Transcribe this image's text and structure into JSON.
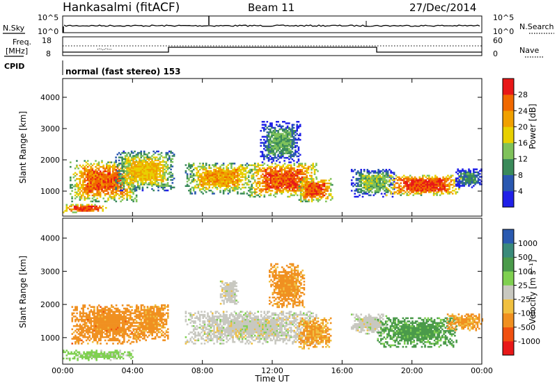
{
  "header": {
    "station": "Hankasalmi (fitACF)",
    "beam": "Beam 11",
    "date": "27/Dec/2014"
  },
  "noise_panel": {
    "left_label": "N.Sky",
    "right_label": "N.Search",
    "left_ticks": [
      "10^5",
      "10^0"
    ],
    "right_ticks": [
      "10^5",
      "10^0"
    ]
  },
  "freq_panel": {
    "left_label_1": "Freq.",
    "left_label_2": "[MHz]",
    "right_label": "Nave",
    "left_ticks": [
      "18",
      "8"
    ],
    "right_ticks": [
      "60",
      "0"
    ]
  },
  "cpid": {
    "label": "CPID",
    "text": "normal (fast stereo) 153"
  },
  "x_axis": {
    "label": "Time UT",
    "ticks": [
      "00:00",
      "04:00",
      "08:00",
      "12:00",
      "16:00",
      "20:00",
      "00:00"
    ]
  },
  "chart_data": [
    {
      "type": "heatmap",
      "title": "",
      "xlabel": "Time UT",
      "ylabel": "Slant Range [km]",
      "xlim": [
        0,
        24
      ],
      "ylim": [
        200,
        4600
      ],
      "yticks": [
        "1000",
        "2000",
        "3000",
        "4000"
      ],
      "colorbar": {
        "label": "Power [dB]",
        "ticks": [
          "4",
          "8",
          "12",
          "16",
          "20",
          "24",
          "28"
        ],
        "colors": [
          "#2020e8",
          "#2a58b0",
          "#3a8a5a",
          "#7fc25a",
          "#e8d000",
          "#f0a000",
          "#f06800",
          "#e81818"
        ]
      },
      "regions": [
        {
          "t": [
            0.4,
            4.2
          ],
          "r": [
            650,
            1950
          ],
          "value": 26
        },
        {
          "t": [
            0.0,
            2.5
          ],
          "r": [
            300,
            560
          ],
          "value": 28
        },
        {
          "t": [
            3.0,
            6.4
          ],
          "r": [
            1000,
            2250
          ],
          "value": 20
        },
        {
          "t": [
            7.0,
            11.0
          ],
          "r": [
            900,
            1900
          ],
          "value": 22
        },
        {
          "t": [
            10.6,
            14.6
          ],
          "r": [
            800,
            1900
          ],
          "value": 27
        },
        {
          "t": [
            11.3,
            13.6
          ],
          "r": [
            1900,
            3200
          ],
          "value": 12
        },
        {
          "t": [
            13.5,
            15.4
          ],
          "r": [
            650,
            1400
          ],
          "value": 27
        },
        {
          "t": [
            16.5,
            19.0
          ],
          "r": [
            800,
            1700
          ],
          "value": 14
        },
        {
          "t": [
            18.5,
            22.8
          ],
          "r": [
            850,
            1500
          ],
          "value": 28
        },
        {
          "t": [
            22.4,
            24.0
          ],
          "r": [
            1100,
            1700
          ],
          "value": 10
        }
      ]
    },
    {
      "type": "heatmap",
      "title": "",
      "xlabel": "Time UT",
      "ylabel": "Slant Range [km]",
      "xlim": [
        0,
        24
      ],
      "ylim": [
        200,
        4600
      ],
      "yticks": [
        "1000",
        "2000",
        "3000",
        "4000"
      ],
      "colorbar": {
        "label": "Velocity [m s⁻¹]",
        "ticks": [
          "1000",
          "500",
          "100",
          "25",
          "-25",
          "-100",
          "-500",
          "-1000"
        ],
        "colors": [
          "#2a5ab0",
          "#3a8a7a",
          "#4a9a4a",
          "#7fd050",
          "#c8c8c0",
          "#f0c040",
          "#f09020",
          "#f05010",
          "#e81818"
        ]
      },
      "regions": [
        {
          "t": [
            0.5,
            4.5
          ],
          "r": [
            800,
            2000
          ],
          "value": -300
        },
        {
          "t": [
            4.0,
            6.0
          ],
          "r": [
            900,
            2000
          ],
          "value": -200
        },
        {
          "t": [
            7.0,
            14.5
          ],
          "r": [
            800,
            1800
          ],
          "value": 0
        },
        {
          "t": [
            9.0,
            10.0
          ],
          "r": [
            2000,
            2700
          ],
          "value": 0
        },
        {
          "t": [
            11.8,
            13.8
          ],
          "r": [
            1900,
            3200
          ],
          "value": -200
        },
        {
          "t": [
            13.5,
            15.3
          ],
          "r": [
            650,
            1600
          ],
          "value": -120
        },
        {
          "t": [
            16.5,
            18.5
          ],
          "r": [
            1100,
            1700
          ],
          "value": 0
        },
        {
          "t": [
            18.0,
            22.5
          ],
          "r": [
            700,
            1600
          ],
          "value": 200
        },
        {
          "t": [
            22.0,
            24.0
          ],
          "r": [
            1200,
            1700
          ],
          "value": -150
        },
        {
          "t": [
            0.0,
            4.0
          ],
          "r": [
            300,
            600
          ],
          "value": 50
        }
      ]
    }
  ]
}
